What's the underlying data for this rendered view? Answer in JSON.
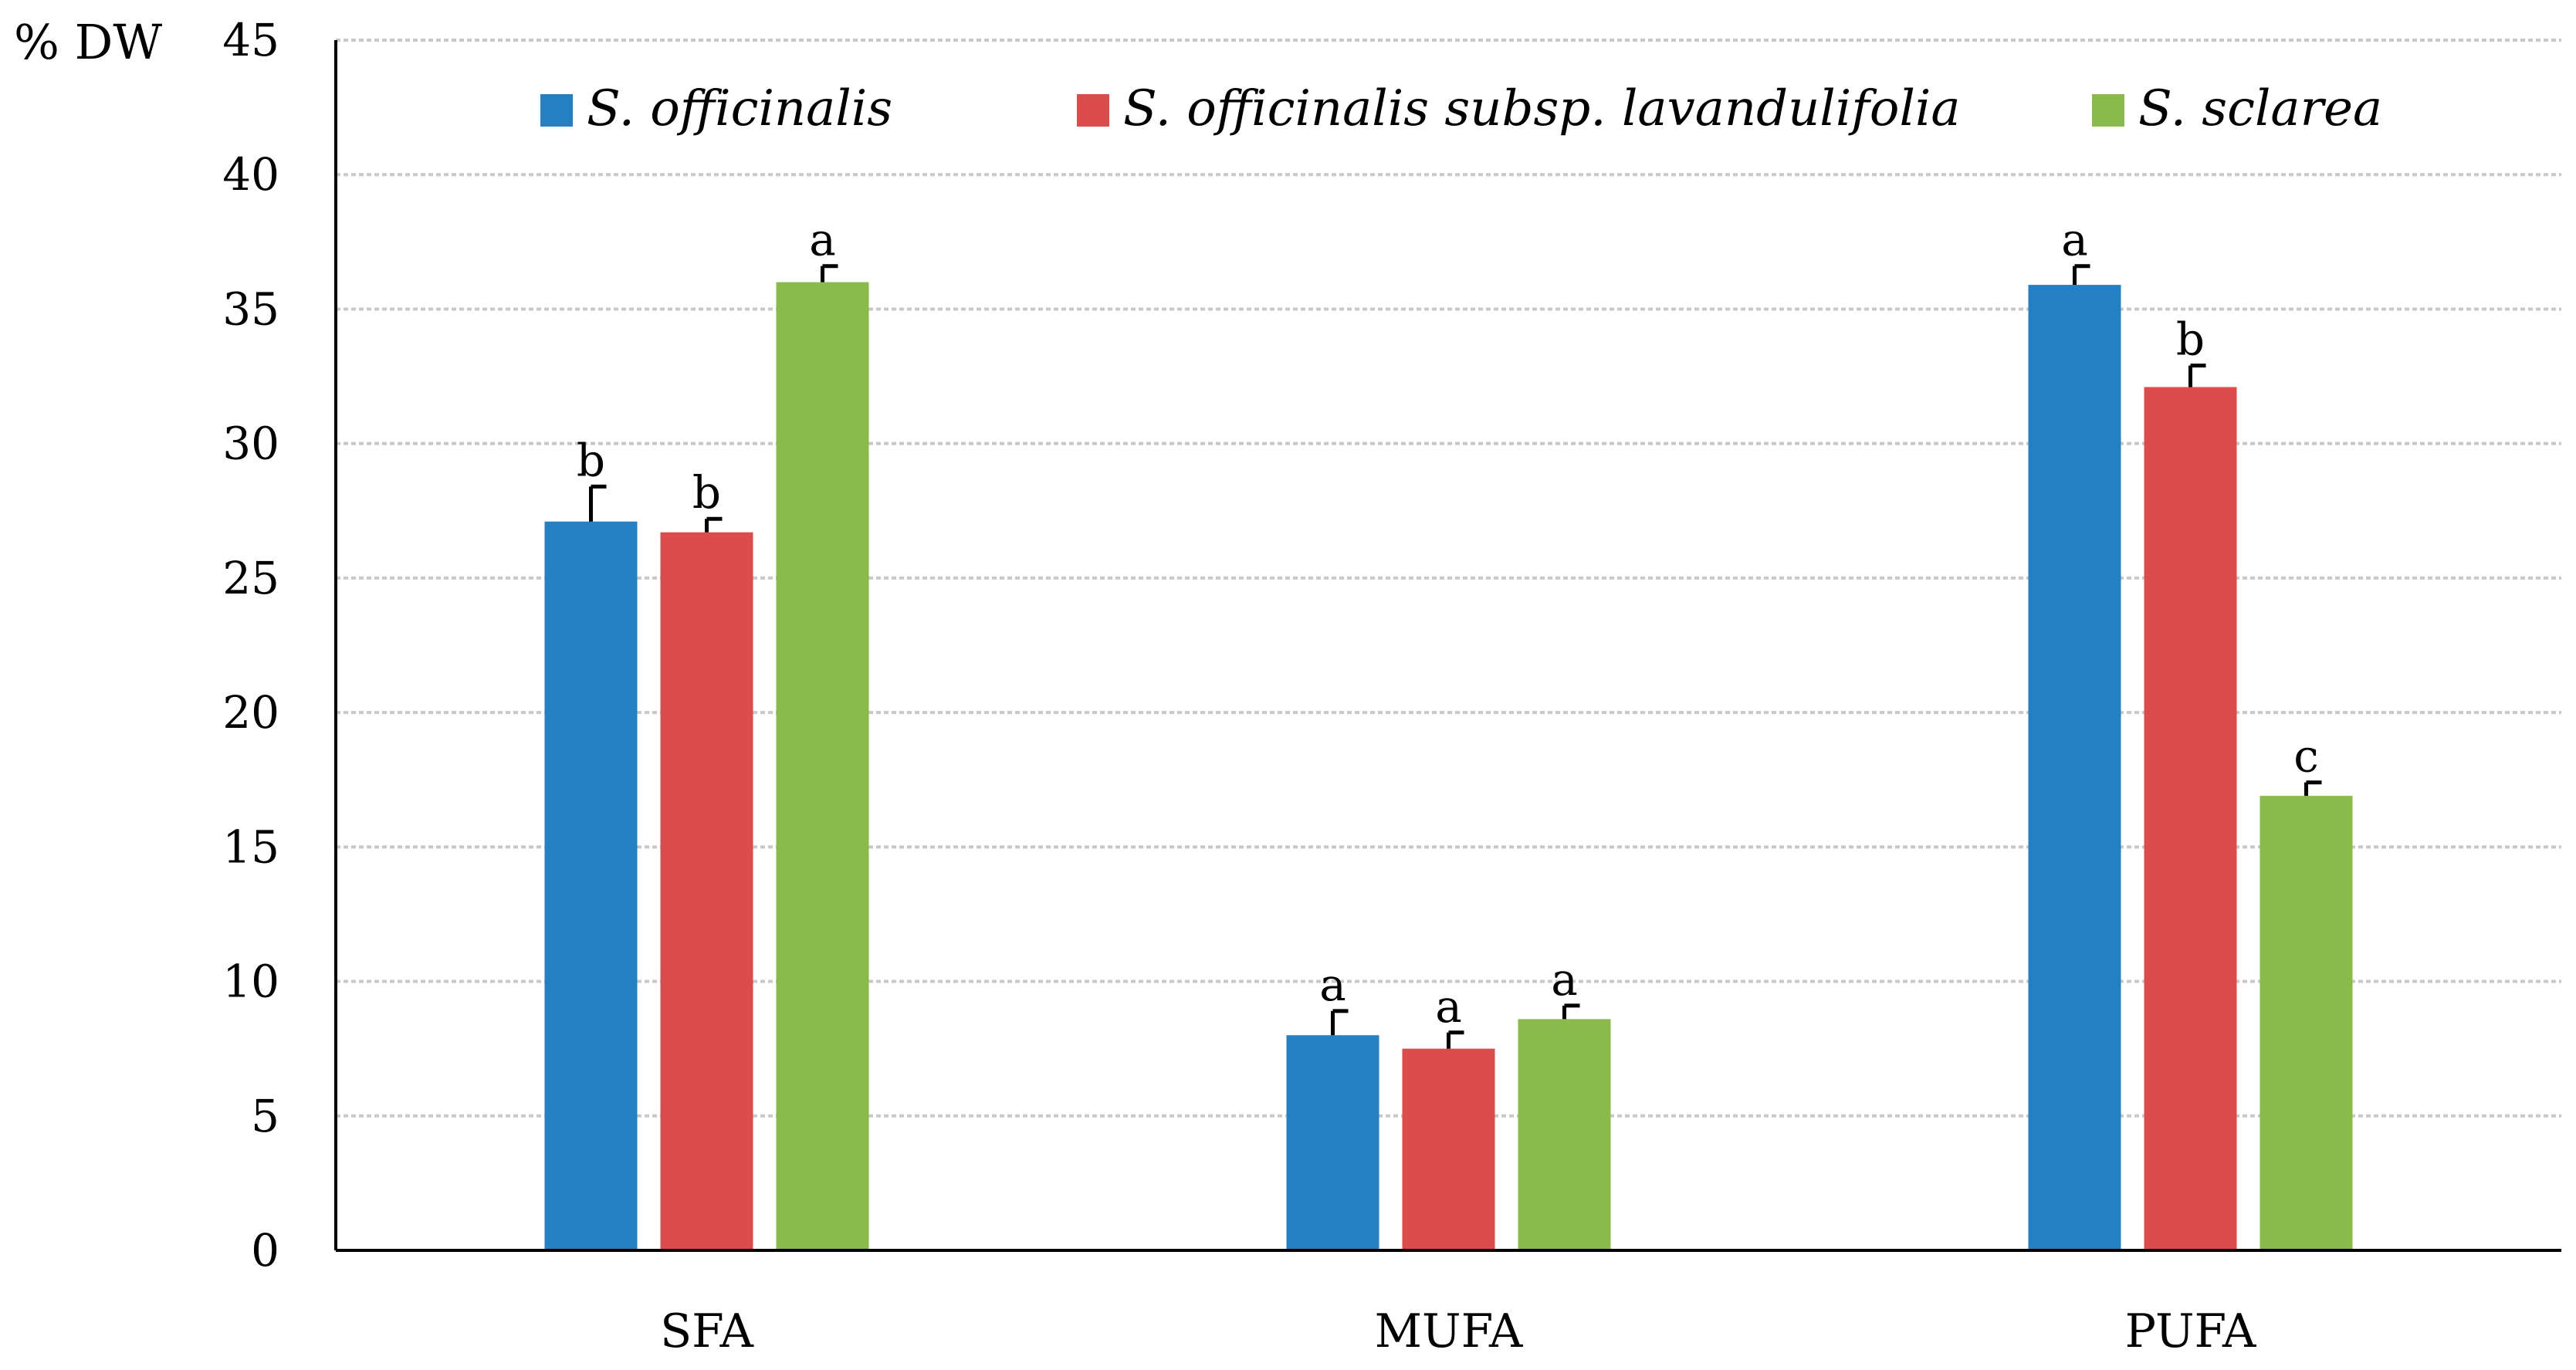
{
  "chart_data": {
    "type": "bar",
    "title": "",
    "xlabel": "",
    "ylabel": "% DW",
    "ylim": [
      0,
      45
    ],
    "yticks": [
      0,
      5,
      10,
      15,
      20,
      25,
      30,
      35,
      40,
      45
    ],
    "grid": true,
    "legend_position": "top",
    "categories": [
      "SFA",
      "MUFA",
      "PUFA"
    ],
    "series": [
      {
        "name": "S. officinalis",
        "color": "#2480c2",
        "values": [
          27.1,
          8.0,
          35.9
        ],
        "errors": [
          1.3,
          0.9,
          0.7
        ],
        "letters": [
          "b",
          "a",
          "a"
        ]
      },
      {
        "name": "S. officinalis subsp. lavandulifolia",
        "color": "#da4d4c",
        "values": [
          26.7,
          7.5,
          32.1
        ],
        "errors": [
          0.5,
          0.6,
          0.8
        ],
        "letters": [
          "b",
          "a",
          "b"
        ]
      },
      {
        "name": "S. sclarea",
        "color": "#8aba4a",
        "values": [
          36.0,
          8.6,
          16.9
        ],
        "errors": [
          0.6,
          0.5,
          0.5
        ],
        "letters": [
          "a",
          "a",
          "c"
        ]
      }
    ]
  }
}
